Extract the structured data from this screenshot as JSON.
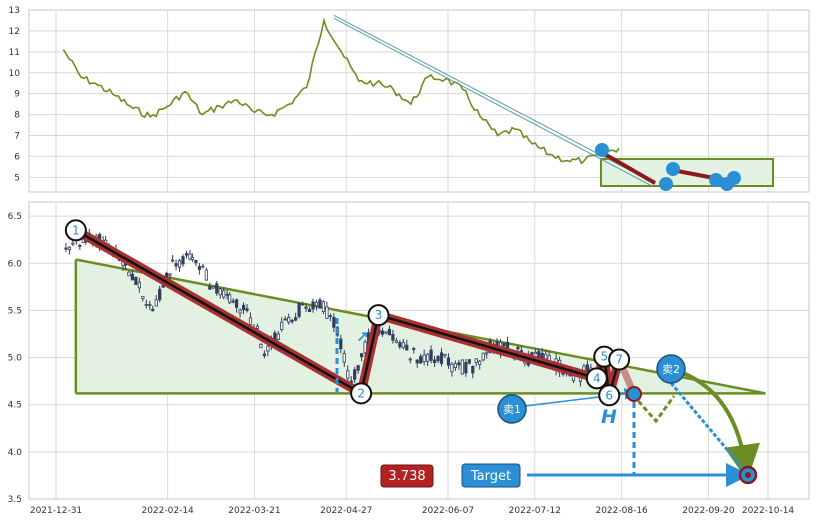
{
  "chart_data": [
    {
      "type": "line",
      "panel": "top",
      "ylim": [
        4.3,
        13
      ],
      "y_ticks": [
        "5",
        "6",
        "7",
        "8",
        "9",
        "10",
        "11",
        "12",
        "13"
      ],
      "series": [
        {
          "x": [
            "2022-01-03",
            "2022-01-10",
            "2022-01-17",
            "2022-01-24",
            "2022-01-31",
            "2022-02-07",
            "2022-02-14",
            "2022-02-21",
            "2022-02-28",
            "2022-03-07",
            "2022-03-14",
            "2022-03-21",
            "2022-03-28",
            "2022-04-04",
            "2022-04-11",
            "2022-04-18",
            "2022-04-25",
            "2022-05-02",
            "2022-05-09",
            "2022-05-16",
            "2022-05-23",
            "2022-05-30",
            "2022-06-06",
            "2022-06-13",
            "2022-06-20",
            "2022-06-27",
            "2022-07-04",
            "2022-07-11",
            "2022-07-18",
            "2022-07-25",
            "2022-08-01",
            "2022-08-08",
            "2022-08-15"
          ],
          "values": [
            11.1,
            9.8,
            9.4,
            8.9,
            8.3,
            7.9,
            8.4,
            9.1,
            8.0,
            8.4,
            8.7,
            8.1,
            8.0,
            8.5,
            9.3,
            12.5,
            11.0,
            9.6,
            9.5,
            9.2,
            8.5,
            9.8,
            9.7,
            9.2,
            7.9,
            7.0,
            7.3,
            6.6,
            6.1,
            5.8,
            5.8,
            6.1,
            6.4
          ],
          "color": "#6b8e23"
        }
      ],
      "pattern_line": {
        "x": [
          "2022-04-22",
          "2022-08-28"
        ],
        "y": [
          12.6,
          4.6
        ]
      }
    },
    {
      "type": "candlestick",
      "panel": "bottom",
      "ylim": [
        3.5,
        6.65
      ],
      "y_ticks": [
        "3.5",
        "4.0",
        "4.5",
        "5.0",
        "5.5",
        "6.0",
        "6.5"
      ],
      "x_ticks": [
        "2021-12-31",
        "2022-02-14",
        "2022-03-21",
        "2022-04-27",
        "2022-06-07",
        "2022-07-12",
        "2022-08-16",
        "2022-09-20",
        "2022-10-14"
      ],
      "close_path": {
        "x": [
          "2022-01-04",
          "2022-01-12",
          "2022-01-20",
          "2022-01-28",
          "2022-02-08",
          "2022-02-16",
          "2022-02-24",
          "2022-03-03",
          "2022-03-11",
          "2022-03-18",
          "2022-03-25",
          "2022-04-01",
          "2022-04-08",
          "2022-04-15",
          "2022-04-22",
          "2022-04-29",
          "2022-05-06",
          "2022-05-13",
          "2022-05-20",
          "2022-05-27",
          "2022-06-03",
          "2022-06-10",
          "2022-06-17",
          "2022-06-24",
          "2022-07-01",
          "2022-07-08",
          "2022-07-15",
          "2022-07-22",
          "2022-07-29",
          "2022-08-05"
        ],
        "values": [
          6.1,
          6.3,
          6.2,
          6.0,
          5.5,
          6.0,
          6.1,
          5.8,
          5.6,
          5.5,
          5.1,
          5.3,
          5.5,
          5.6,
          5.4,
          4.7,
          5.2,
          5.3,
          5.1,
          5.0,
          5.0,
          4.9,
          4.9,
          5.1,
          5.1,
          5.0,
          5.0,
          4.9,
          4.8,
          4.9
        ]
      },
      "pattern": [
        {
          "label": "1",
          "x": "2022-01-08",
          "y": 6.35
        },
        {
          "label": "2",
          "x": "2022-05-03",
          "y": 4.62
        },
        {
          "label": "3",
          "x": "2022-05-10",
          "y": 5.45
        },
        {
          "label": "4",
          "x": "2022-08-06",
          "y": 4.78
        },
        {
          "label": "5",
          "x": "2022-08-09",
          "y": 5.01
        },
        {
          "label": "6",
          "x": "2022-08-11",
          "y": 4.6
        },
        {
          "label": "7",
          "x": "2022-08-15",
          "y": 4.98
        }
      ],
      "upper_line": {
        "x": [
          "2022-01-08",
          "2022-10-13"
        ],
        "y": [
          6.04,
          4.62
        ]
      },
      "lower_line": {
        "x": [
          "2022-01-08",
          "2022-10-13"
        ],
        "y": [
          4.62,
          4.62
        ]
      },
      "sell_points": [
        {
          "label": "卖1",
          "x": "2022-08-01",
          "y": 4.44
        },
        {
          "label": "卖2",
          "x": "2022-09-14",
          "y": 4.88
        }
      ],
      "target": {
        "label": "Target",
        "value": "3.738",
        "y": 3.738
      },
      "h_label": "H"
    }
  ],
  "colors": {
    "price": "#6b8e23",
    "pattern": "#8b1a1a",
    "fill": "#e3f1e3",
    "accent": "#2b8fd6",
    "badge": "#b22222"
  }
}
